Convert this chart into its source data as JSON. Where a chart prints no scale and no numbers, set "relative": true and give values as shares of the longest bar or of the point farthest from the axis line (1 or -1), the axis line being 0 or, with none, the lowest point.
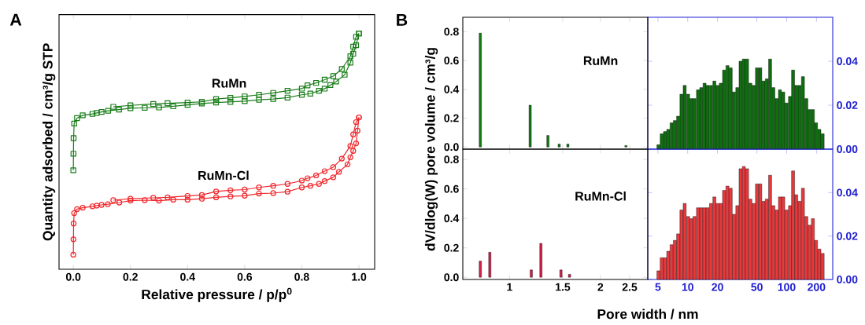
{
  "chart_data": [
    {
      "type": "line",
      "relative": true,
      "xlim": [
        -0.05,
        1.055
      ],
      "xticks": [
        {
          "value": 0,
          "label": "0.0"
        },
        {
          "value": 0.2,
          "label": "0.2"
        },
        {
          "value": 0.4,
          "label": "0.4"
        },
        {
          "value": 0.6,
          "label": "0.6"
        },
        {
          "value": 0.8,
          "label": "0.8"
        },
        {
          "value": 1,
          "label": "1.0"
        }
      ],
      "xlabel": "Relative pressure / p/p$^{0}$",
      "ylabel": "Quantity adsorbed / cm³/g STP",
      "annotations": [
        "A"
      ],
      "series": [
        {
          "name": "RuMn",
          "color": "#1a7d1a",
          "marker": "square",
          "x": [
            0,
            0.0005,
            0.001,
            0.003,
            0.013,
            0.033,
            0.067,
            0.082,
            0.099,
            0.122,
            0.16,
            0.2,
            0.25,
            0.3,
            0.35,
            0.4,
            0.45,
            0.5,
            0.55,
            0.6,
            0.65,
            0.7,
            0.75,
            0.8,
            0.83,
            0.86,
            0.88,
            0.9,
            0.92,
            0.95,
            0.97,
            0.98,
            0.99,
            1.0
          ],
          "values": [
            0.42,
            0.49,
            0.556,
            0.618,
            0.641,
            0.653,
            0.659,
            0.663,
            0.667,
            0.672,
            0.677,
            0.683,
            0.685,
            0.686,
            0.691,
            0.697,
            0.703,
            0.707,
            0.71,
            0.713,
            0.719,
            0.722,
            0.728,
            0.74,
            0.745,
            0.757,
            0.766,
            0.781,
            0.796,
            0.825,
            0.876,
            0.914,
            0.95,
            1.0
          ]
        },
        {
          "color": "#1a7d1a",
          "marker": "square",
          "x": [
            1.0,
            0.99,
            0.98,
            0.97,
            0.94,
            0.91,
            0.88,
            0.85,
            0.82,
            0.8,
            0.75,
            0.7,
            0.65,
            0.6,
            0.55,
            0.5,
            0.45,
            0.4,
            0.33,
            0.28,
            0.2,
            0.14
          ],
          "values": [
            1.0,
            0.986,
            0.944,
            0.903,
            0.849,
            0.819,
            0.804,
            0.79,
            0.78,
            0.766,
            0.757,
            0.748,
            0.74,
            0.733,
            0.727,
            0.722,
            0.71,
            0.707,
            0.704,
            0.701,
            0.695,
            0.689
          ]
        },
        {
          "name": "RuMn-Cl",
          "color": "#f0282d",
          "marker": "circle",
          "x": [
            0,
            0.0005,
            0.001,
            0.003,
            0.013,
            0.033,
            0.067,
            0.082,
            0.099,
            0.121,
            0.161,
            0.2,
            0.25,
            0.3,
            0.35,
            0.4,
            0.45,
            0.5,
            0.55,
            0.6,
            0.65,
            0.7,
            0.75,
            0.8,
            0.83,
            0.86,
            0.88,
            0.91,
            0.93,
            0.96,
            0.97,
            0.98,
            0.99,
            0.995,
            1.0
          ],
          "values": [
            0.062,
            0.127,
            0.194,
            0.238,
            0.255,
            0.261,
            0.267,
            0.27,
            0.273,
            0.276,
            0.283,
            0.291,
            0.293,
            0.291,
            0.295,
            0.295,
            0.299,
            0.305,
            0.309,
            0.312,
            0.321,
            0.323,
            0.329,
            0.347,
            0.354,
            0.362,
            0.374,
            0.39,
            0.413,
            0.445,
            0.475,
            0.502,
            0.534,
            0.588,
            0.644
          ]
        },
        {
          "color": "#f0282d",
          "marker": "circle",
          "x": [
            1.0,
            0.99,
            0.98,
            0.97,
            0.94,
            0.91,
            0.88,
            0.85,
            0.82,
            0.8,
            0.75,
            0.7,
            0.65,
            0.6,
            0.55,
            0.5,
            0.45,
            0.4,
            0.33,
            0.28,
            0.2,
            0.14
          ],
          "values": [
            0.644,
            0.624,
            0.572,
            0.523,
            0.469,
            0.433,
            0.416,
            0.398,
            0.386,
            0.376,
            0.362,
            0.354,
            0.347,
            0.338,
            0.335,
            0.33,
            0.315,
            0.311,
            0.305,
            0.303,
            0.299,
            0.293
          ]
        }
      ]
    },
    {
      "type": "bar",
      "log": "x",
      "tick_labels": "y",
      "xlim": [
        0.7,
        2.87
      ],
      "xticks": [
        1,
        1.5,
        2,
        2.5
      ],
      "ylim": [
        -0.015,
        0.9
      ],
      "yticks": [
        {
          "value": 0,
          "label": "0.0"
        },
        {
          "value": 0.2,
          "label": "0.2"
        },
        {
          "value": 0.4,
          "label": "0.4"
        },
        {
          "value": 0.6,
          "label": "0.6"
        },
        {
          "value": 0.8,
          "label": "0.8"
        }
      ],
      "ylabel": "dV/dlog(W) pore volume / cm³/g",
      "annotations": [
        "B"
      ],
      "series": [
        {
          "name": "RuMn",
          "color": "#117a11",
          "x": [
            0.8,
            1.17,
            1.34,
            1.46,
            1.56,
            2.43
          ],
          "values": [
            0.79,
            0.29,
            0.08,
            0.02,
            0.02,
            0.01
          ]
        }
      ]
    },
    {
      "type": "bar",
      "log": "x",
      "tick_labels": "y",
      "xlim": [
        3.95,
        292
      ],
      "xticks": [
        5,
        10,
        20,
        50,
        100,
        200
      ],
      "y2lim": [
        0,
        0.06
      ],
      "y2ticks": [
        {
          "value": 0,
          "label": "0.00"
        },
        {
          "value": 0.02,
          "label": "0.02"
        },
        {
          "value": 0.04,
          "label": "0.04"
        }
      ],
      "series": [
        {
          "color": "#0f6e0f",
          "axis": "y2",
          "x": [
            5.06,
            5.46,
            5.9,
            6.36,
            6.87,
            7.42,
            8.0,
            8.64,
            9.32,
            10.1,
            10.9,
            11.7,
            12.7,
            13.7,
            14.8,
            15.9,
            17.2,
            18.6,
            20.0,
            21.6,
            23.3,
            25.2,
            27.2,
            29.3,
            31.7,
            34.2,
            36.9,
            39.8,
            43.0,
            46.4,
            50.1,
            54.1,
            58.4,
            63.0,
            68.0,
            73.4,
            79.2,
            85.5,
            92.3,
            99.7,
            108,
            116,
            125,
            135,
            146,
            158,
            170,
            184,
            198,
            214,
            231
          ],
          "values": [
            0.002,
            0.007,
            0.008,
            0.009,
            0.012,
            0.013,
            0.015,
            0.025,
            0.029,
            0.025,
            0.023,
            0.023,
            0.027,
            0.028,
            0.03,
            0.029,
            0.029,
            0.031,
            0.029,
            0.03,
            0.036,
            0.038,
            0.037,
            0.026,
            0.028,
            0.04,
            0.041,
            0.041,
            0.03,
            0.029,
            0.037,
            0.037,
            0.031,
            0.032,
            0.041,
            0.028,
            0.023,
            0.027,
            0.026,
            0.021,
            0.024,
            0.036,
            0.029,
            0.029,
            0.033,
            0.023,
            0.018,
            0.018,
            0.012,
            0.009,
            0.007
          ]
        }
      ]
    },
    {
      "type": "bar",
      "log": "x",
      "xlim": [
        0.7,
        2.87
      ],
      "xticks": [
        1,
        1.5,
        2,
        2.5
      ],
      "ylim": [
        -0.015,
        0.87
      ],
      "yticks": [
        {
          "value": 0,
          "label": "0.0"
        },
        {
          "value": 0.2,
          "label": "0.2"
        },
        {
          "value": 0.4,
          "label": "0.4"
        },
        {
          "value": 0.6,
          "label": "0.6"
        },
        {
          "value": 0.8,
          "label": "0.8"
        }
      ],
      "xlabel": "Pore width / nm",
      "series": [
        {
          "name": "RuMn-Cl",
          "color": "#d21e4b",
          "x": [
            0.8,
            0.86,
            1.18,
            1.27,
            1.48,
            1.58
          ],
          "values": [
            0.11,
            0.17,
            0.05,
            0.23,
            0.05,
            0.02
          ]
        }
      ]
    },
    {
      "type": "bar",
      "log": "x",
      "xlim": [
        3.95,
        292
      ],
      "xticks": [
        5,
        10,
        20,
        50,
        100,
        200
      ],
      "y2lim": [
        0,
        0.06
      ],
      "y2ticks": [
        {
          "value": 0,
          "label": "0.00"
        },
        {
          "value": 0.02,
          "label": "0.02"
        },
        {
          "value": 0.04,
          "label": "0.04"
        }
      ],
      "series": [
        {
          "color": "#e8393c",
          "axis": "y2",
          "x": [
            5.06,
            5.46,
            5.9,
            6.36,
            6.87,
            7.42,
            8.0,
            8.64,
            9.32,
            10.1,
            10.9,
            11.7,
            12.7,
            13.7,
            14.8,
            15.9,
            17.2,
            18.6,
            20.0,
            21.6,
            23.3,
            25.2,
            27.2,
            29.3,
            31.7,
            34.2,
            36.9,
            39.8,
            43.0,
            46.4,
            50.1,
            54.1,
            58.4,
            63.0,
            68.0,
            73.4,
            79.2,
            85.5,
            92.3,
            99.7,
            108,
            116,
            125,
            135,
            146,
            158,
            170,
            184,
            198,
            214,
            231
          ],
          "values": [
            0.004,
            0.01,
            0.01,
            0.013,
            0.016,
            0.018,
            0.021,
            0.032,
            0.035,
            0.029,
            0.028,
            0.029,
            0.033,
            0.033,
            0.033,
            0.033,
            0.035,
            0.038,
            0.035,
            0.035,
            0.041,
            0.043,
            0.042,
            0.03,
            0.034,
            0.051,
            0.052,
            0.051,
            0.037,
            0.035,
            0.044,
            0.044,
            0.036,
            0.037,
            0.048,
            0.034,
            0.032,
            0.038,
            0.038,
            0.032,
            0.034,
            0.05,
            0.039,
            0.036,
            0.042,
            0.029,
            0.025,
            0.028,
            0.018,
            0.014,
            0.012
          ]
        }
      ]
    }
  ]
}
